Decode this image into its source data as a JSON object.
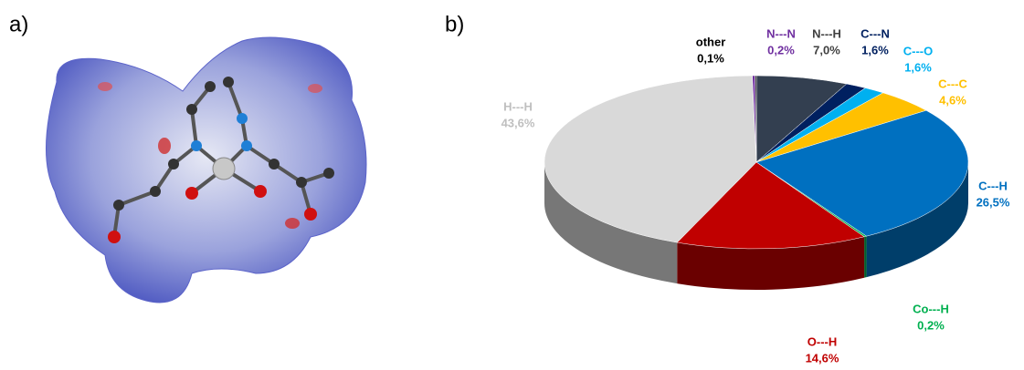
{
  "panel_labels": [
    "a)",
    "b)"
  ],
  "chart_data": {
    "type": "pie",
    "categories": [
      "N---H",
      "C---N",
      "C---O",
      "C---C",
      "C---H",
      "Co---H",
      "O---H",
      "H---H",
      "N---N",
      "other"
    ],
    "values": [
      7.0,
      1.6,
      1.6,
      4.6,
      26.5,
      0.2,
      14.6,
      43.6,
      0.2,
      0.1
    ],
    "value_labels": [
      "7,0%",
      "1,6%",
      "1,6%",
      "4,6%",
      "26,5%",
      "0,2%",
      "14,6%",
      "43,6%",
      "0,2%",
      "0,1%"
    ],
    "colors": [
      "#333f50",
      "#002060",
      "#00b0f0",
      "#ffc000",
      "#0070c0",
      "#00b050",
      "#c00000",
      "#d9d9d9",
      "#7030a0",
      "#000000"
    ],
    "label_colors": [
      "#404040",
      "#002060",
      "#00b0f0",
      "#ffc000",
      "#0070c0",
      "#00b050",
      "#c00000",
      "#bfbfbf",
      "#7030a0",
      "#000000"
    ]
  }
}
